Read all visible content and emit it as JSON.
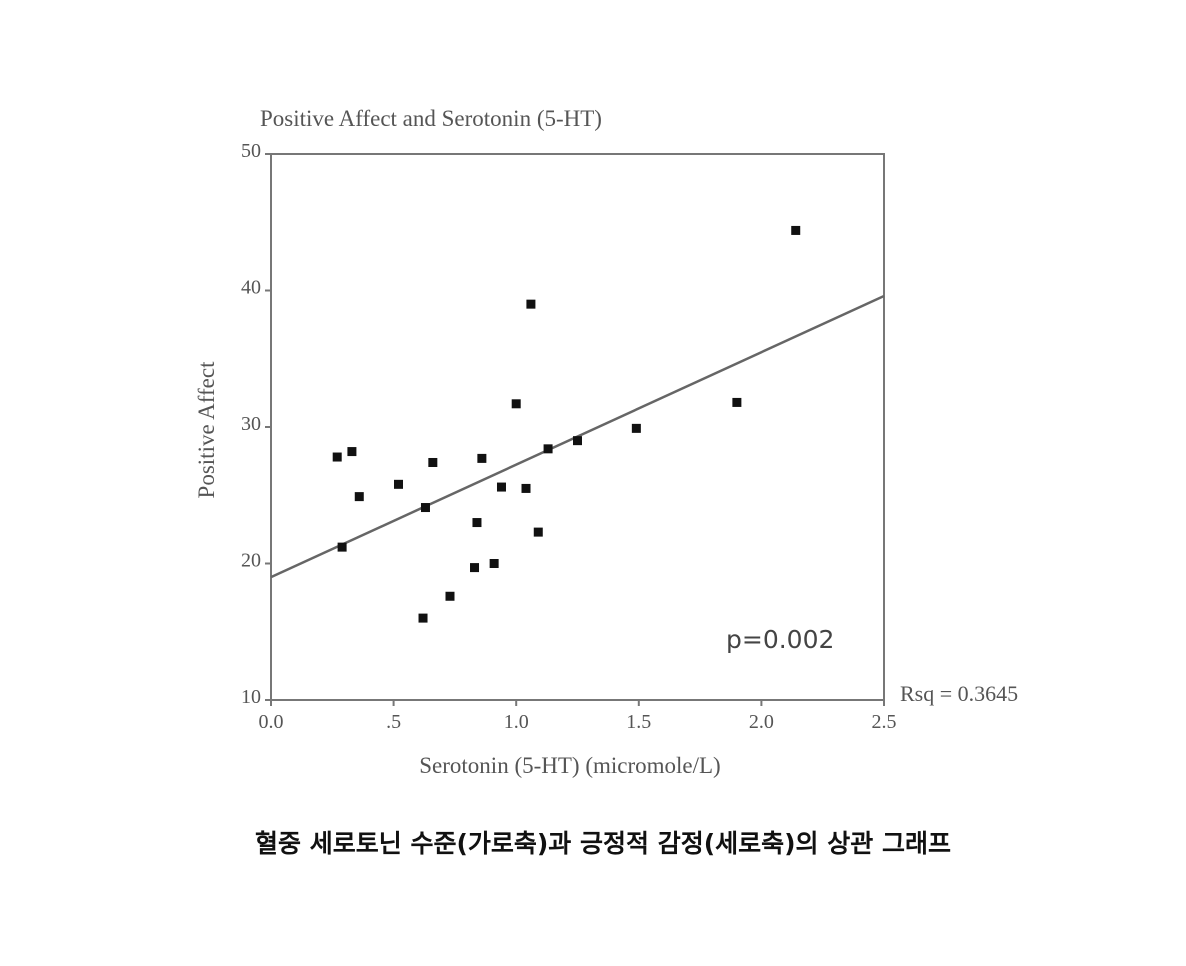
{
  "chart_data": {
    "type": "scatter",
    "title": "Positive Affect and Serotonin (5-HT)",
    "x_label": "Serotonin (5-HT) (micromole/L)",
    "y_label": "Positive Affect",
    "x": [
      0.27,
      0.33,
      0.36,
      0.29,
      0.52,
      0.66,
      0.63,
      0.62,
      0.73,
      0.83,
      0.91,
      0.84,
      0.86,
      0.94,
      1.04,
      1.09,
      1.0,
      1.06,
      1.13,
      1.25,
      1.49,
      1.9,
      2.14
    ],
    "values": [
      27.8,
      28.2,
      24.9,
      21.2,
      25.8,
      27.4,
      24.1,
      16.0,
      17.6,
      19.7,
      20.0,
      23.0,
      27.7,
      25.6,
      25.5,
      22.3,
      31.7,
      39.0,
      28.4,
      29.0,
      29.9,
      31.8,
      44.4
    ],
    "color": "#111111",
    "trendline": {
      "x": [
        0,
        2.5
      ],
      "values": [
        19.0,
        39.6
      ],
      "color": "#666666"
    },
    "xlim": [
      0,
      2.5
    ],
    "ylim": [
      10,
      50
    ],
    "xticks": [
      {
        "value": 0,
        "label": "0.0"
      },
      {
        "value": 0.5,
        "label": ".5"
      },
      {
        "value": 1,
        "label": "1.0"
      },
      {
        "value": 1.5,
        "label": "1.5"
      },
      {
        "value": 2,
        "label": "2.0"
      },
      {
        "value": 2.5,
        "label": "2.5"
      }
    ],
    "yticks": [
      10,
      20,
      30,
      40,
      50
    ],
    "annotations": [
      "p=0.002",
      "Rsq = 0.3645"
    ],
    "caption": "혈중 세로토닌 수준(가로축)과 긍정적 감정(세로축)의 상관 그래프"
  }
}
